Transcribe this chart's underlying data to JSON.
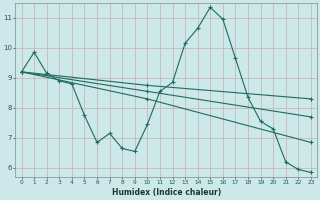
{
  "xlabel": "Humidex (Indice chaleur)",
  "bg_color": "#cce8e8",
  "grid_color": "#c8b8b8",
  "line_color": "#1e6b5e",
  "xlim": [
    -0.5,
    23.5
  ],
  "ylim": [
    5.7,
    11.5
  ],
  "yticks": [
    6,
    7,
    8,
    9,
    10,
    11
  ],
  "xticks": [
    0,
    1,
    2,
    3,
    4,
    5,
    6,
    7,
    8,
    9,
    10,
    11,
    12,
    13,
    14,
    15,
    16,
    17,
    18,
    19,
    20,
    21,
    22,
    23
  ],
  "series": [
    {
      "x": [
        0,
        1,
        2,
        3,
        4,
        5,
        6,
        7,
        8,
        9,
        10,
        11,
        12,
        13,
        14,
        15,
        16,
        17,
        18,
        19,
        20,
        21,
        22,
        23
      ],
      "y": [
        9.2,
        9.85,
        9.15,
        8.9,
        8.8,
        7.75,
        6.85,
        7.15,
        6.65,
        6.55,
        7.45,
        8.55,
        8.85,
        10.15,
        10.65,
        11.35,
        10.95,
        9.65,
        8.35,
        7.55,
        7.3,
        6.2,
        5.95,
        5.85
      ]
    },
    {
      "x": [
        0,
        10,
        23
      ],
      "y": [
        9.2,
        8.75,
        8.3
      ]
    },
    {
      "x": [
        0,
        10,
        23
      ],
      "y": [
        9.2,
        8.55,
        7.7
      ]
    },
    {
      "x": [
        0,
        10,
        23
      ],
      "y": [
        9.2,
        8.3,
        6.85
      ]
    }
  ]
}
